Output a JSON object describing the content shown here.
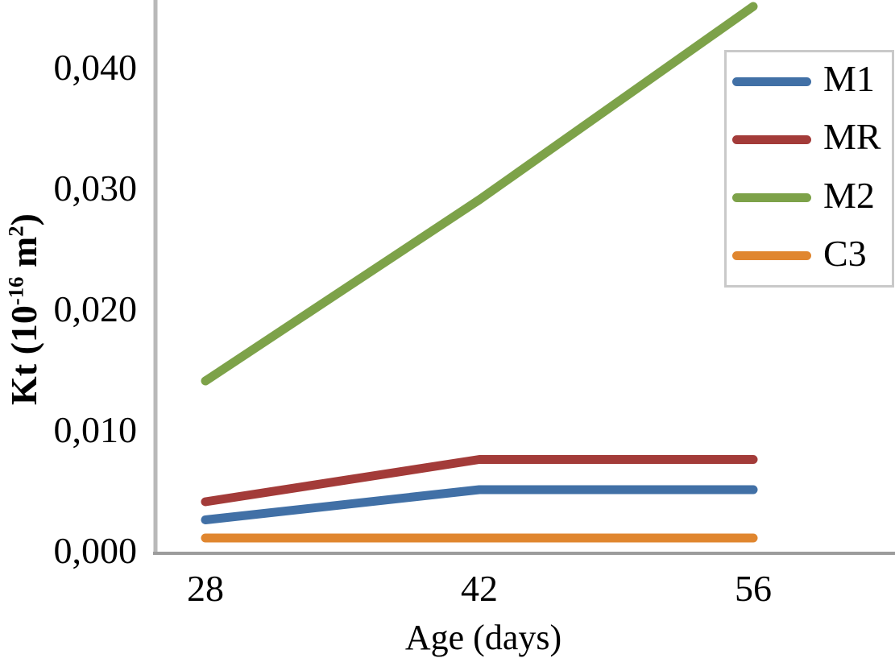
{
  "chart_data": {
    "type": "line",
    "title": "",
    "xlabel": "Age (days)",
    "ylabel": "Kt (10-16 m2)",
    "ylabel_parts": {
      "pre": "Kt (10",
      "sup1": "-16",
      "mid": " m",
      "sup2": "2",
      "post": ")"
    },
    "x": [
      28,
      42,
      56
    ],
    "x_tick_labels": [
      "28",
      "42",
      "56"
    ],
    "y_ticks": [
      {
        "value": 0.0,
        "label": "0,000"
      },
      {
        "value": 0.01,
        "label": "0,010"
      },
      {
        "value": 0.02,
        "label": "0,020"
      },
      {
        "value": 0.03,
        "label": "0,030"
      },
      {
        "value": 0.04,
        "label": "0,040"
      }
    ],
    "ylim": [
      0,
      0.045
    ],
    "grid": false,
    "legend_position": "top-right",
    "decimal_separator": ",",
    "axis_color_y": "#B9B9B9",
    "axis_color_x": "#9C9C9C",
    "series": [
      {
        "name": "M1",
        "color": "#4170A6",
        "values": [
          0.0025,
          0.005,
          0.005
        ]
      },
      {
        "name": "MR",
        "color": "#A33B39",
        "values": [
          0.004,
          0.0075,
          0.0075
        ]
      },
      {
        "name": "M2",
        "color": "#7DA249",
        "values": [
          0.014,
          0.029,
          0.045
        ]
      },
      {
        "name": "C3",
        "color": "#E0862F",
        "values": [
          0.001,
          0.001,
          0.001
        ]
      }
    ]
  }
}
